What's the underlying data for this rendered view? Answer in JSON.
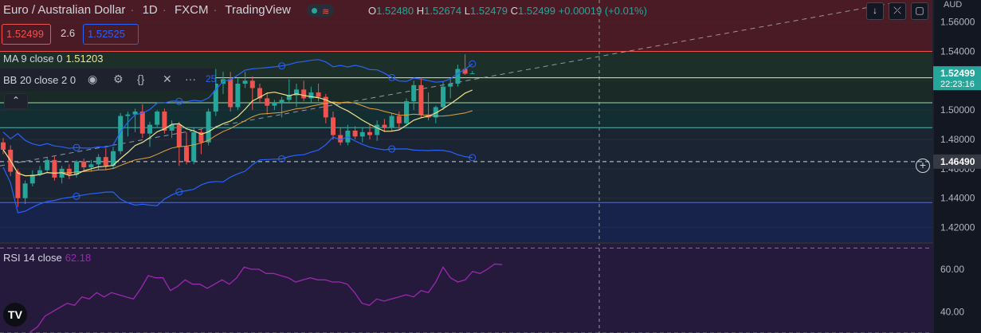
{
  "header": {
    "symbol": "Euro / Australian Dollar",
    "interval": "1D",
    "exchange": "FXCM",
    "source": "TradingView",
    "ohlc": {
      "o_label": "O",
      "o": "1.52480",
      "h_label": "H",
      "h": "1.52674",
      "l_label": "L",
      "l": "1.52479",
      "c_label": "C",
      "c": "1.52499",
      "change": "+0.00019 (+0.01%)"
    }
  },
  "trade": {
    "sell": "1.52499",
    "spread": "2.6",
    "buy": "1.52525"
  },
  "indicators": {
    "ma": {
      "label": "MA 9 close 0",
      "value": "1.51203"
    },
    "bb": {
      "label": "BB 20 close 2 0",
      "trail": "25"
    },
    "rsi": {
      "label": "RSI 14 close",
      "value": "62.18"
    }
  },
  "currency": "AUD",
  "colors": {
    "up": "#26a69a",
    "down": "#ef5350",
    "ma": "#f0e68c",
    "ma2": "#e6a23c",
    "bb": "#2962ff",
    "rsi": "#9c27b0"
  },
  "chart_data": {
    "type": "candlestick",
    "price_axis": {
      "ylim": [
        1.41,
        1.575
      ],
      "ticks": [
        {
          "value": 1.42,
          "label": "1.42000"
        },
        {
          "value": 1.44,
          "label": "1.44000"
        },
        {
          "value": 1.46,
          "label": "1.46000"
        },
        {
          "value": 1.48,
          "label": "1.48000"
        },
        {
          "value": 1.5,
          "label": "1.50000"
        },
        {
          "value": 1.52,
          "label": "1.52000"
        },
        {
          "value": 1.54,
          "label": "1.54000"
        },
        {
          "value": 1.56,
          "label": "1.56000"
        }
      ],
      "last_price": {
        "value": 1.52499,
        "label": "1.52499",
        "countdown": "22:23:16"
      },
      "crosshair": {
        "value": 1.4649,
        "label": "1.46490"
      }
    },
    "levels": [
      1.54,
      1.522,
      1.505,
      1.488,
      1.437
    ],
    "candles": [
      {
        "o": 1.478,
        "h": 1.481,
        "l": 1.47,
        "c": 1.473
      },
      {
        "o": 1.473,
        "h": 1.476,
        "l": 1.455,
        "c": 1.458
      },
      {
        "o": 1.458,
        "h": 1.46,
        "l": 1.434,
        "c": 1.44
      },
      {
        "o": 1.44,
        "h": 1.452,
        "l": 1.436,
        "c": 1.45
      },
      {
        "o": 1.45,
        "h": 1.459,
        "l": 1.448,
        "c": 1.456
      },
      {
        "o": 1.456,
        "h": 1.462,
        "l": 1.455,
        "c": 1.459
      },
      {
        "o": 1.459,
        "h": 1.468,
        "l": 1.457,
        "c": 1.466
      },
      {
        "o": 1.466,
        "h": 1.469,
        "l": 1.452,
        "c": 1.454
      },
      {
        "o": 1.454,
        "h": 1.462,
        "l": 1.45,
        "c": 1.46
      },
      {
        "o": 1.46,
        "h": 1.463,
        "l": 1.453,
        "c": 1.456
      },
      {
        "o": 1.456,
        "h": 1.466,
        "l": 1.454,
        "c": 1.465
      },
      {
        "o": 1.465,
        "h": 1.467,
        "l": 1.458,
        "c": 1.461
      },
      {
        "o": 1.461,
        "h": 1.466,
        "l": 1.458,
        "c": 1.463
      },
      {
        "o": 1.463,
        "h": 1.47,
        "l": 1.459,
        "c": 1.468
      },
      {
        "o": 1.468,
        "h": 1.474,
        "l": 1.459,
        "c": 1.462
      },
      {
        "o": 1.462,
        "h": 1.475,
        "l": 1.46,
        "c": 1.472
      },
      {
        "o": 1.472,
        "h": 1.498,
        "l": 1.47,
        "c": 1.496
      },
      {
        "o": 1.496,
        "h": 1.499,
        "l": 1.482,
        "c": 1.497
      },
      {
        "o": 1.497,
        "h": 1.501,
        "l": 1.485,
        "c": 1.499
      },
      {
        "o": 1.499,
        "h": 1.504,
        "l": 1.481,
        "c": 1.484
      },
      {
        "o": 1.484,
        "h": 1.492,
        "l": 1.475,
        "c": 1.49
      },
      {
        "o": 1.49,
        "h": 1.5,
        "l": 1.488,
        "c": 1.499
      },
      {
        "o": 1.499,
        "h": 1.501,
        "l": 1.484,
        "c": 1.486
      },
      {
        "o": 1.486,
        "h": 1.493,
        "l": 1.481,
        "c": 1.49
      },
      {
        "o": 1.49,
        "h": 1.492,
        "l": 1.462,
        "c": 1.475
      },
      {
        "o": 1.475,
        "h": 1.485,
        "l": 1.463,
        "c": 1.465
      },
      {
        "o": 1.465,
        "h": 1.488,
        "l": 1.463,
        "c": 1.485
      },
      {
        "o": 1.485,
        "h": 1.487,
        "l": 1.47,
        "c": 1.478
      },
      {
        "o": 1.478,
        "h": 1.501,
        "l": 1.476,
        "c": 1.499
      },
      {
        "o": 1.499,
        "h": 1.528,
        "l": 1.496,
        "c": 1.518
      },
      {
        "o": 1.518,
        "h": 1.526,
        "l": 1.511,
        "c": 1.521
      },
      {
        "o": 1.521,
        "h": 1.526,
        "l": 1.499,
        "c": 1.502
      },
      {
        "o": 1.502,
        "h": 1.522,
        "l": 1.5,
        "c": 1.518
      },
      {
        "o": 1.518,
        "h": 1.526,
        "l": 1.515,
        "c": 1.52
      },
      {
        "o": 1.52,
        "h": 1.523,
        "l": 1.5,
        "c": 1.515
      },
      {
        "o": 1.515,
        "h": 1.518,
        "l": 1.505,
        "c": 1.508
      },
      {
        "o": 1.508,
        "h": 1.512,
        "l": 1.497,
        "c": 1.503
      },
      {
        "o": 1.503,
        "h": 1.507,
        "l": 1.5,
        "c": 1.505
      },
      {
        "o": 1.505,
        "h": 1.509,
        "l": 1.495,
        "c": 1.507
      },
      {
        "o": 1.507,
        "h": 1.521,
        "l": 1.505,
        "c": 1.51
      },
      {
        "o": 1.51,
        "h": 1.518,
        "l": 1.502,
        "c": 1.514
      },
      {
        "o": 1.514,
        "h": 1.52,
        "l": 1.506,
        "c": 1.508
      },
      {
        "o": 1.508,
        "h": 1.516,
        "l": 1.505,
        "c": 1.512
      },
      {
        "o": 1.512,
        "h": 1.518,
        "l": 1.506,
        "c": 1.509
      },
      {
        "o": 1.509,
        "h": 1.511,
        "l": 1.491,
        "c": 1.495
      },
      {
        "o": 1.495,
        "h": 1.499,
        "l": 1.48,
        "c": 1.483
      },
      {
        "o": 1.483,
        "h": 1.488,
        "l": 1.476,
        "c": 1.478
      },
      {
        "o": 1.478,
        "h": 1.49,
        "l": 1.476,
        "c": 1.486
      },
      {
        "o": 1.486,
        "h": 1.489,
        "l": 1.48,
        "c": 1.482
      },
      {
        "o": 1.482,
        "h": 1.488,
        "l": 1.478,
        "c": 1.485
      },
      {
        "o": 1.485,
        "h": 1.49,
        "l": 1.48,
        "c": 1.483
      },
      {
        "o": 1.483,
        "h": 1.493,
        "l": 1.479,
        "c": 1.49
      },
      {
        "o": 1.49,
        "h": 1.494,
        "l": 1.485,
        "c": 1.488
      },
      {
        "o": 1.488,
        "h": 1.498,
        "l": 1.486,
        "c": 1.496
      },
      {
        "o": 1.496,
        "h": 1.499,
        "l": 1.487,
        "c": 1.491
      },
      {
        "o": 1.491,
        "h": 1.508,
        "l": 1.489,
        "c": 1.506
      },
      {
        "o": 1.506,
        "h": 1.52,
        "l": 1.5,
        "c": 1.517
      },
      {
        "o": 1.517,
        "h": 1.522,
        "l": 1.495,
        "c": 1.497
      },
      {
        "o": 1.497,
        "h": 1.512,
        "l": 1.493,
        "c": 1.495
      },
      {
        "o": 1.495,
        "h": 1.503,
        "l": 1.491,
        "c": 1.502
      },
      {
        "o": 1.502,
        "h": 1.519,
        "l": 1.5,
        "c": 1.516
      },
      {
        "o": 1.516,
        "h": 1.521,
        "l": 1.508,
        "c": 1.518
      },
      {
        "o": 1.518,
        "h": 1.531,
        "l": 1.516,
        "c": 1.528
      },
      {
        "o": 1.528,
        "h": 1.538,
        "l": 1.524,
        "c": 1.5248
      },
      {
        "o": 1.5248,
        "h": 1.5267,
        "l": 1.5248,
        "c": 1.52499
      }
    ],
    "rsi": {
      "ylim": [
        30,
        72
      ],
      "bands": [
        70,
        30
      ],
      "ticks": [
        {
          "value": 60,
          "label": "60.00"
        },
        {
          "value": 40,
          "label": "40.00"
        }
      ],
      "values": [
        30.5,
        33,
        38,
        40,
        42,
        44,
        43,
        47,
        46,
        49,
        47,
        49,
        48,
        47,
        46,
        51,
        57,
        56,
        56,
        50,
        52,
        55,
        53,
        53,
        51,
        53,
        55,
        53,
        56,
        61,
        60,
        60,
        58,
        58,
        57,
        56,
        54,
        55,
        56,
        55,
        55,
        54,
        54,
        53,
        49,
        44,
        43,
        46,
        45,
        46,
        47,
        48,
        47,
        50,
        49,
        54,
        61,
        56,
        54,
        55,
        59,
        58,
        60,
        62.5,
        62.18
      ]
    }
  }
}
